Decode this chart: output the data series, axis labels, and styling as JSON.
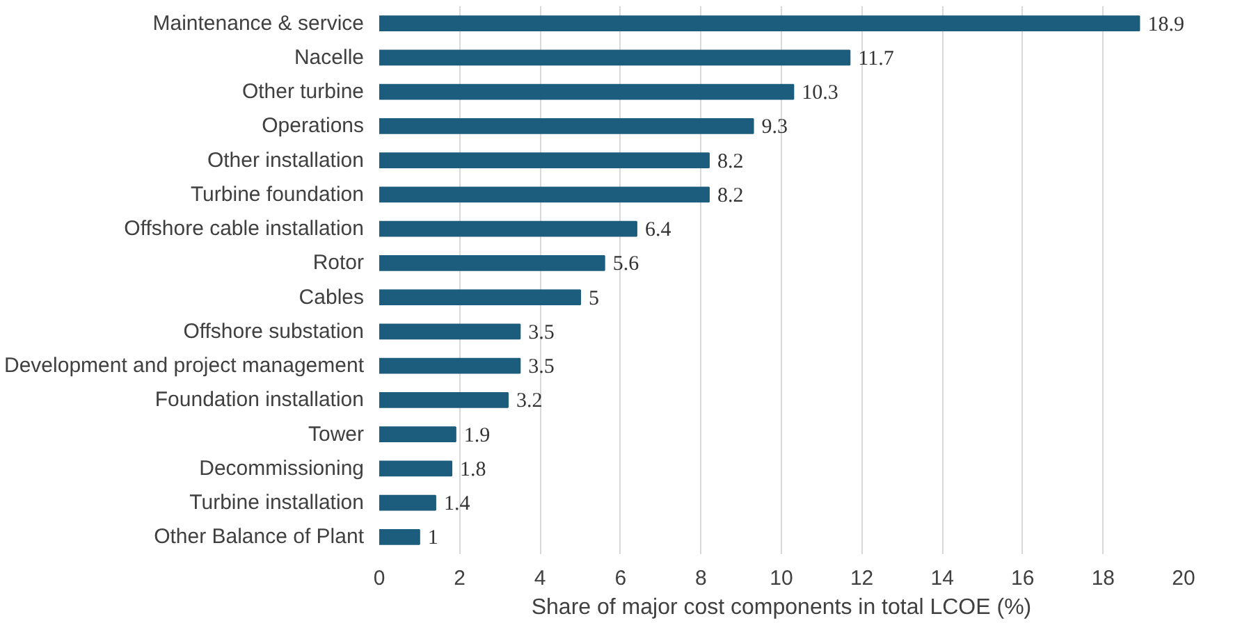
{
  "chart_data": {
    "type": "bar",
    "orientation": "horizontal",
    "xlabel": "Share of major cost components in total LCOE (%)",
    "categories": [
      "Maintenance & service",
      "Nacelle",
      "Other turbine",
      "Operations",
      "Other installation",
      "Turbine foundation",
      "Offshore cable installation",
      "Rotor",
      "Cables",
      "Offshore substation",
      "Development and project management",
      "Foundation installation",
      "Tower",
      "Decommissioning",
      "Turbine installation",
      "Other Balance of Plant"
    ],
    "values": [
      18.9,
      11.7,
      10.3,
      9.3,
      8.2,
      8.2,
      6.4,
      5.6,
      5,
      3.5,
      3.5,
      3.2,
      1.9,
      1.8,
      1.4,
      1
    ],
    "color": "#1c5c7c",
    "xlim": [
      0,
      20
    ],
    "xticks": [
      0,
      2,
      4,
      6,
      8,
      10,
      12,
      14,
      16,
      18,
      20
    ],
    "grid": "x",
    "data_labels": true
  }
}
